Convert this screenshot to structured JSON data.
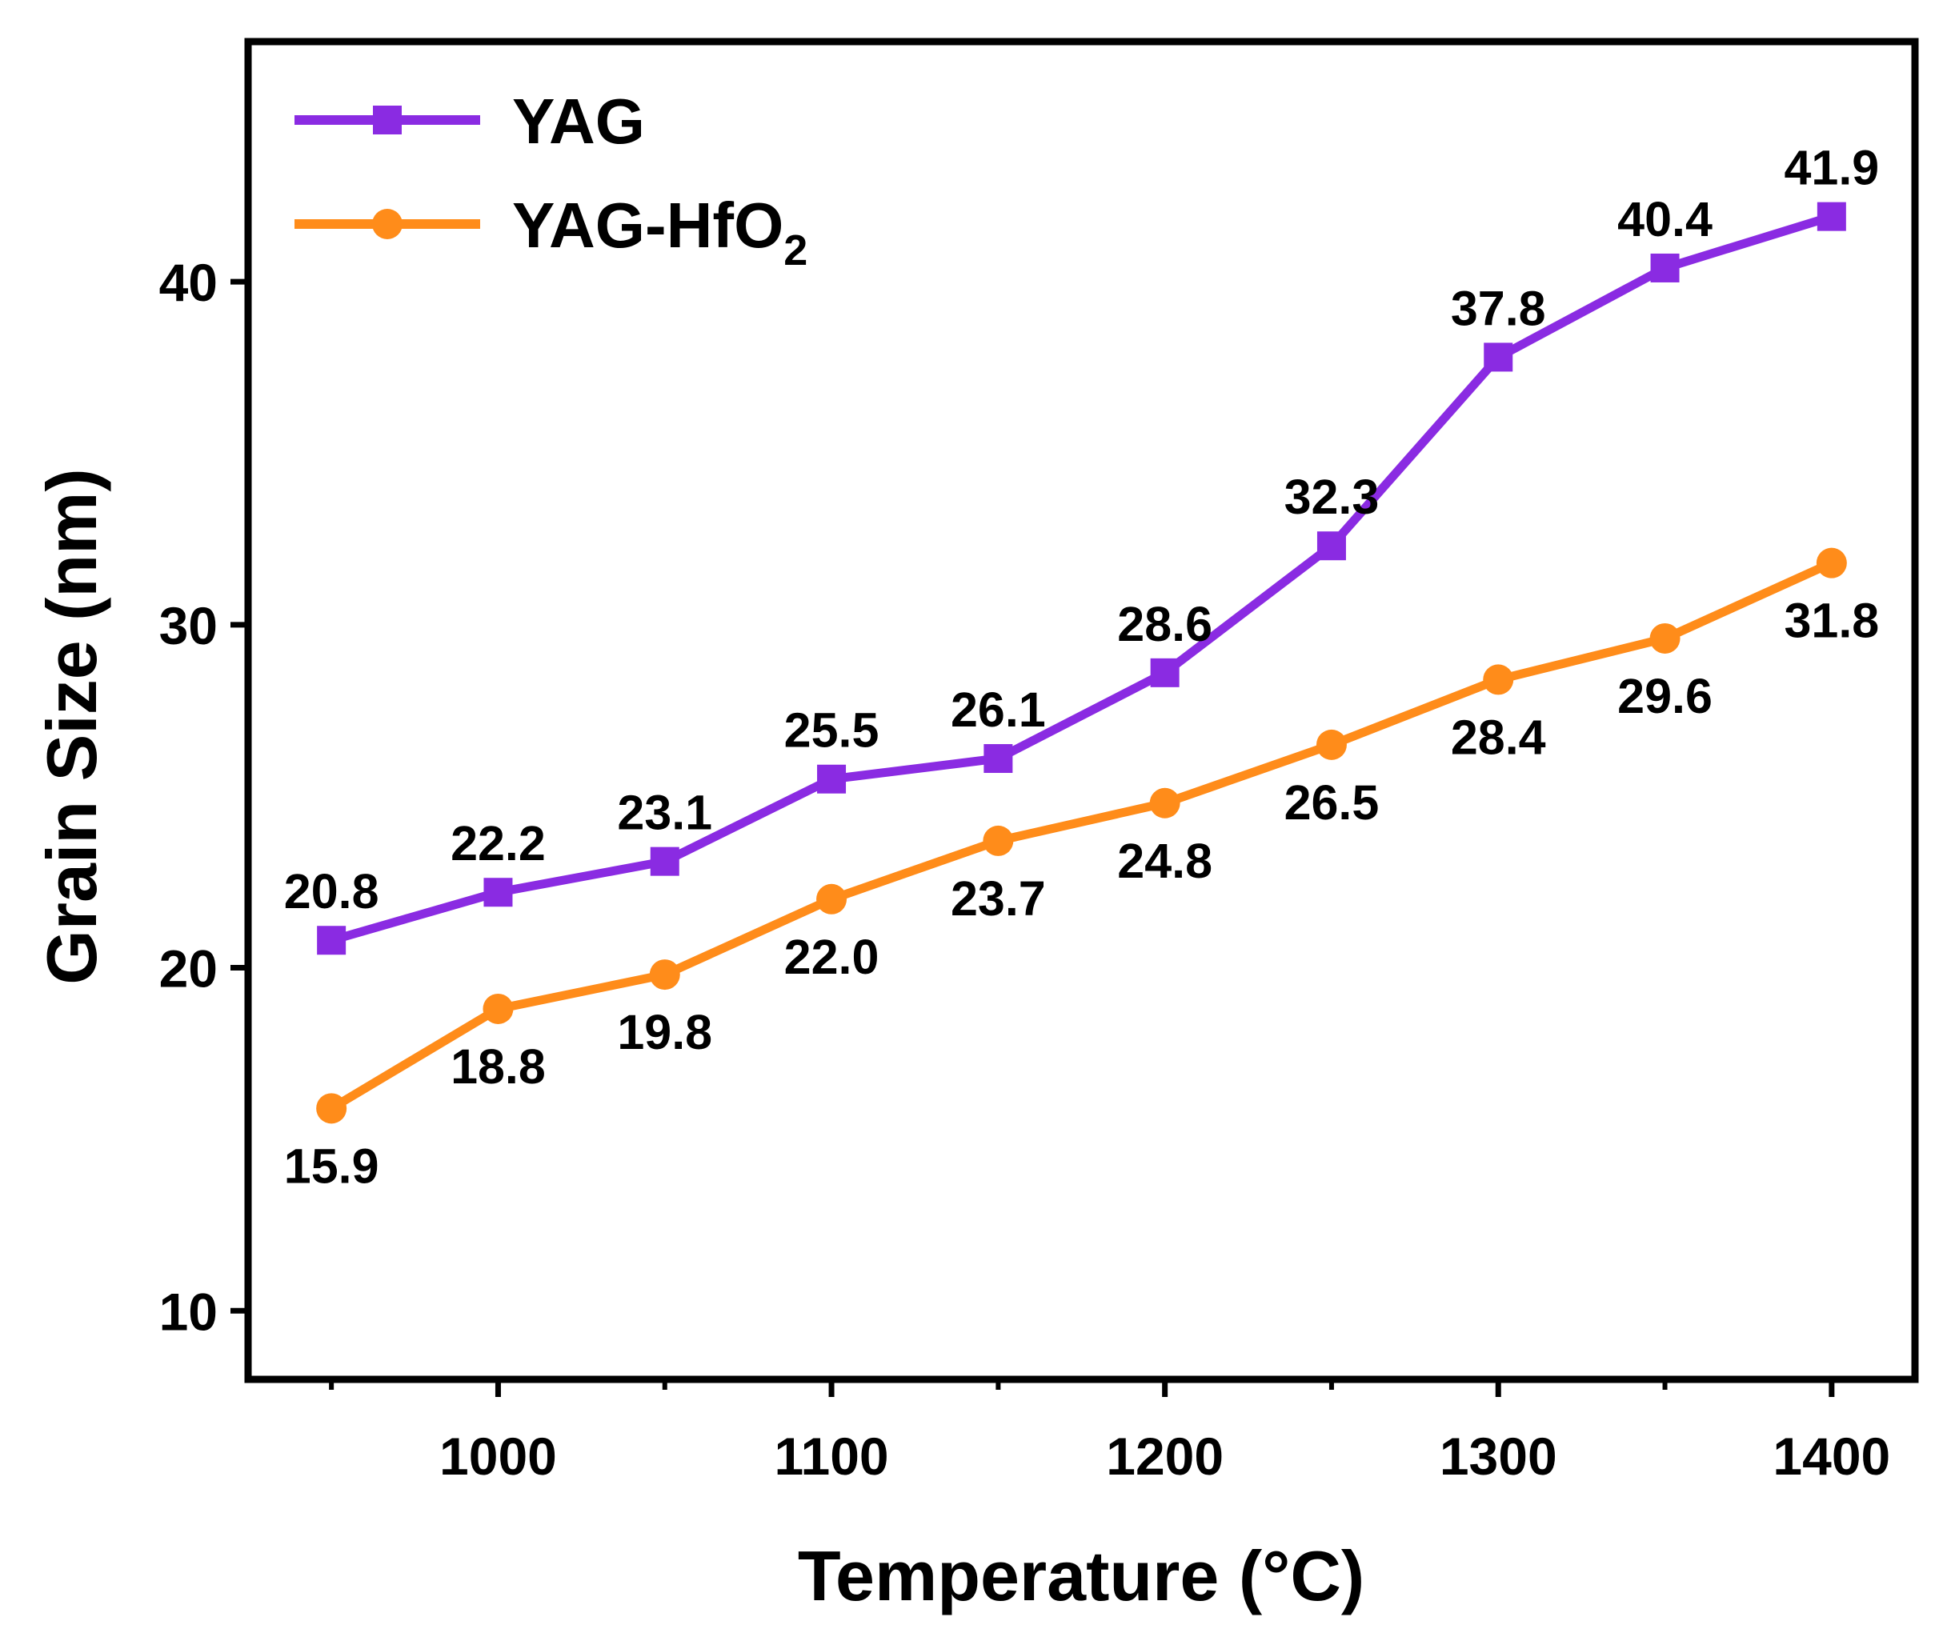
{
  "chart_data": {
    "type": "line",
    "title": "",
    "xlabel": "Temperature (°C)",
    "ylabel": "Grain Size (nm)",
    "xlim": [
      925,
      1425
    ],
    "ylim": [
      8,
      47
    ],
    "x_ticks": [
      1000,
      1100,
      1200,
      1300,
      1400
    ],
    "x_minor_ticks": [
      950,
      1050,
      1150,
      1250,
      1350
    ],
    "y_ticks": [
      10,
      20,
      30,
      40
    ],
    "x_tick_labels": [
      "1000",
      "1100",
      "1200",
      "1300",
      "1400"
    ],
    "y_tick_labels": [
      "10",
      "20",
      "30",
      "40"
    ],
    "x": [
      950,
      1000,
      1050,
      1100,
      1150,
      1200,
      1250,
      1300,
      1350,
      1400
    ],
    "grid": false,
    "legend_position": "top-left",
    "series": [
      {
        "name": "YAG",
        "color": "#8a2be2",
        "marker": "square",
        "values": [
          20.8,
          22.2,
          23.1,
          25.5,
          26.1,
          28.6,
          32.3,
          37.8,
          40.4,
          41.9
        ],
        "labels": [
          "20.8",
          "22.2",
          "23.1",
          "25.5",
          "26.1",
          "28.6",
          "32.3",
          "37.8",
          "40.4",
          "41.9"
        ],
        "label_position": "above"
      },
      {
        "name": "YAG-HfO2",
        "legend_base": "YAG-HfO",
        "legend_subscript": "2",
        "color": "#ff8c1a",
        "marker": "circle",
        "values": [
          15.9,
          18.8,
          19.8,
          22.0,
          23.7,
          24.8,
          26.5,
          28.4,
          29.6,
          31.8
        ],
        "labels": [
          "15.9",
          "18.8",
          "19.8",
          "22.0",
          "23.7",
          "24.8",
          "26.5",
          "28.4",
          "29.6",
          "31.8"
        ],
        "label_position": "below"
      }
    ]
  }
}
